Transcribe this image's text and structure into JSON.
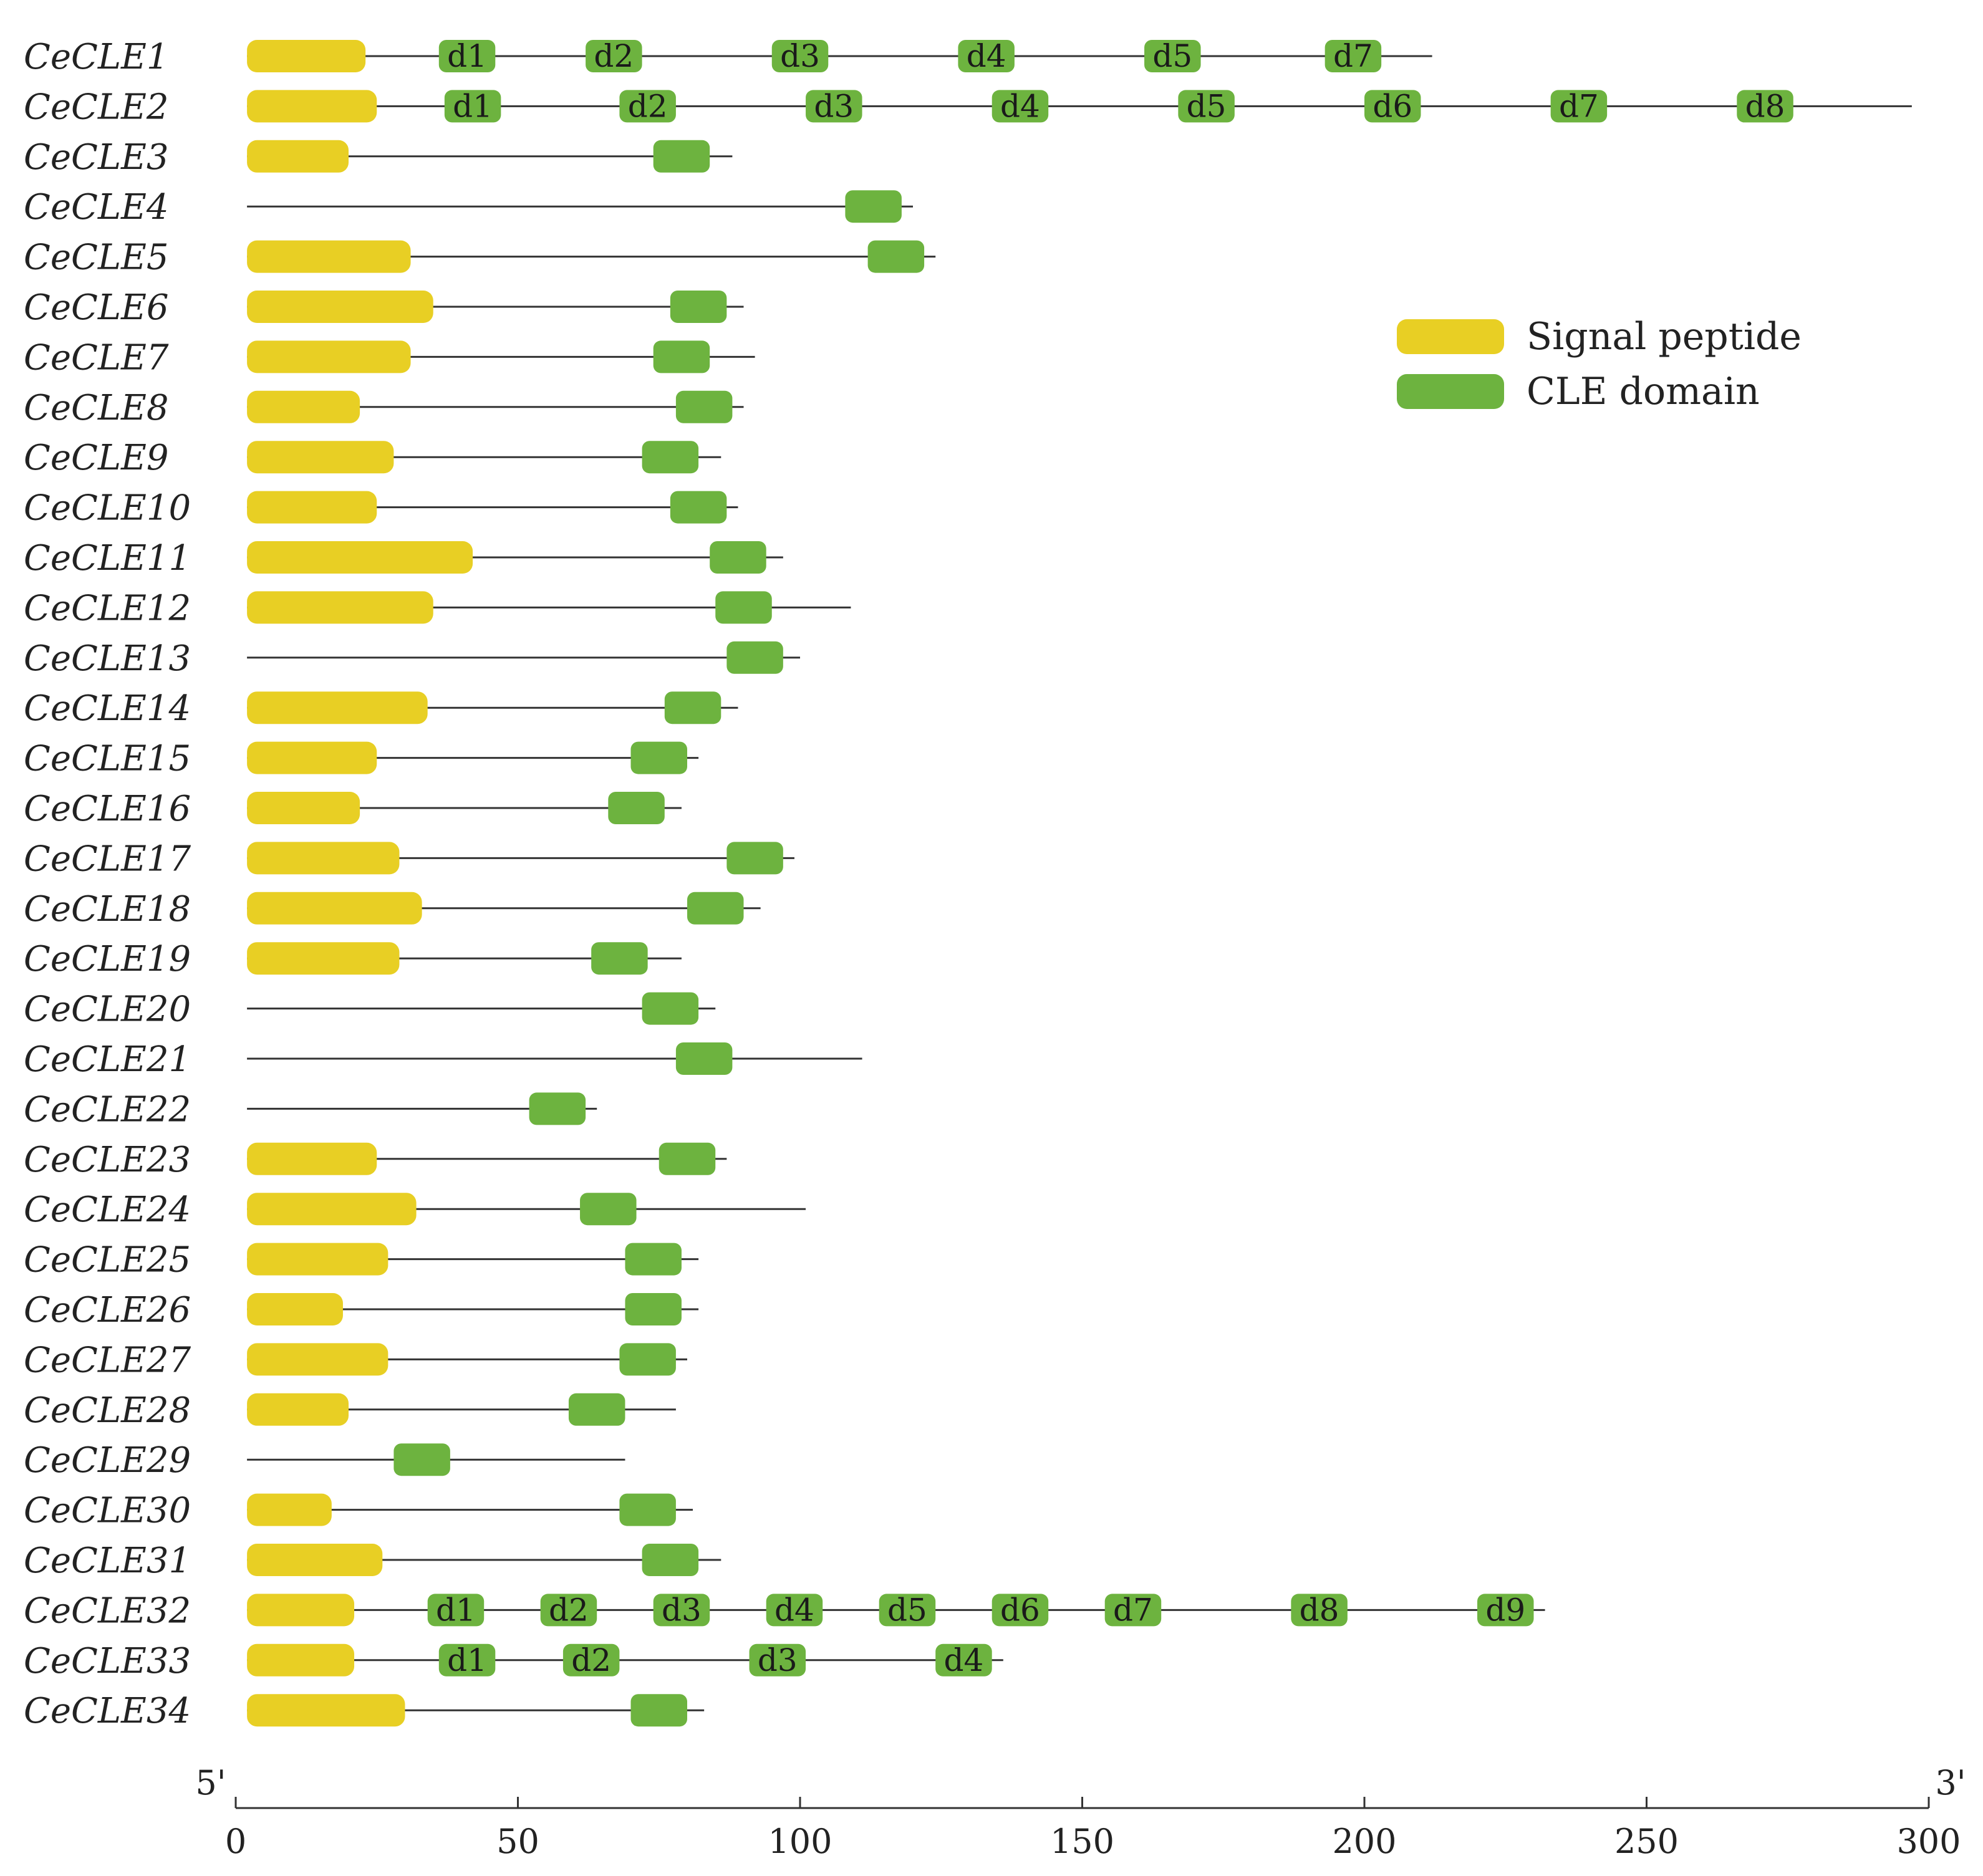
{
  "chart_data": {
    "type": "gene-structure",
    "title": "",
    "xlabel": "",
    "ylabel": "",
    "xlim": [
      0,
      300
    ],
    "xticks": [
      0,
      50,
      100,
      150,
      200,
      250,
      300
    ],
    "axis_end_labels": {
      "left": "5'",
      "right": "3'"
    },
    "colors": {
      "signal_peptide": "#E8CF24",
      "cle_domain": "#6DB33F",
      "backbone": "#333333"
    },
    "legend": {
      "position": "upper-right",
      "items": [
        {
          "key": "signal_peptide",
          "label": "Signal peptide"
        },
        {
          "key": "cle_domain",
          "label": "CLE domain"
        }
      ]
    },
    "genes": [
      {
        "name": "CeCLE1",
        "length": 212,
        "signal": [
          2,
          23
        ],
        "domains": [
          {
            "start": 36,
            "end": 46,
            "label": "d1"
          },
          {
            "start": 62,
            "end": 72,
            "label": "d2"
          },
          {
            "start": 95,
            "end": 105,
            "label": "d3"
          },
          {
            "start": 128,
            "end": 138,
            "label": "d4"
          },
          {
            "start": 161,
            "end": 171,
            "label": "d5"
          },
          {
            "start": 193,
            "end": 203,
            "label": "d7"
          }
        ]
      },
      {
        "name": "CeCLE2",
        "length": 297,
        "signal": [
          2,
          25
        ],
        "domains": [
          {
            "start": 37,
            "end": 47,
            "label": "d1"
          },
          {
            "start": 68,
            "end": 78,
            "label": "d2"
          },
          {
            "start": 101,
            "end": 111,
            "label": "d3"
          },
          {
            "start": 134,
            "end": 144,
            "label": "d4"
          },
          {
            "start": 167,
            "end": 177,
            "label": "d5"
          },
          {
            "start": 200,
            "end": 210,
            "label": "d6"
          },
          {
            "start": 233,
            "end": 243,
            "label": "d7"
          },
          {
            "start": 266,
            "end": 276,
            "label": "d8"
          }
        ]
      },
      {
        "name": "CeCLE3",
        "length": 88,
        "signal": [
          2,
          20
        ],
        "domains": [
          {
            "start": 74,
            "end": 84
          }
        ]
      },
      {
        "name": "CeCLE4",
        "length": 120,
        "signal": null,
        "domains": [
          {
            "start": 108,
            "end": 118
          }
        ]
      },
      {
        "name": "CeCLE5",
        "length": 124,
        "signal": [
          2,
          31
        ],
        "domains": [
          {
            "start": 112,
            "end": 122
          }
        ]
      },
      {
        "name": "CeCLE6",
        "length": 90,
        "signal": [
          2,
          35
        ],
        "domains": [
          {
            "start": 77,
            "end": 87
          }
        ]
      },
      {
        "name": "CeCLE7",
        "length": 92,
        "signal": [
          2,
          31
        ],
        "domains": [
          {
            "start": 74,
            "end": 84
          }
        ]
      },
      {
        "name": "CeCLE8",
        "length": 90,
        "signal": [
          2,
          22
        ],
        "domains": [
          {
            "start": 78,
            "end": 88
          }
        ]
      },
      {
        "name": "CeCLE9",
        "length": 86,
        "signal": [
          2,
          28
        ],
        "domains": [
          {
            "start": 72,
            "end": 82
          }
        ]
      },
      {
        "name": "CeCLE10",
        "length": 89,
        "signal": [
          2,
          25
        ],
        "domains": [
          {
            "start": 77,
            "end": 87
          }
        ]
      },
      {
        "name": "CeCLE11",
        "length": 97,
        "signal": [
          2,
          42
        ],
        "domains": [
          {
            "start": 84,
            "end": 94
          }
        ]
      },
      {
        "name": "CeCLE12",
        "length": 109,
        "signal": [
          2,
          35
        ],
        "domains": [
          {
            "start": 85,
            "end": 95
          }
        ]
      },
      {
        "name": "CeCLE13",
        "length": 100,
        "signal": null,
        "domains": [
          {
            "start": 87,
            "end": 97
          }
        ]
      },
      {
        "name": "CeCLE14",
        "length": 89,
        "signal": [
          2,
          34
        ],
        "domains": [
          {
            "start": 76,
            "end": 86
          }
        ]
      },
      {
        "name": "CeCLE15",
        "length": 82,
        "signal": [
          2,
          25
        ],
        "domains": [
          {
            "start": 70,
            "end": 80
          }
        ]
      },
      {
        "name": "CeCLE16",
        "length": 79,
        "signal": [
          2,
          22
        ],
        "domains": [
          {
            "start": 66,
            "end": 76
          }
        ]
      },
      {
        "name": "CeCLE17",
        "length": 99,
        "signal": [
          2,
          29
        ],
        "domains": [
          {
            "start": 87,
            "end": 97
          }
        ]
      },
      {
        "name": "CeCLE18",
        "length": 93,
        "signal": [
          2,
          33
        ],
        "domains": [
          {
            "start": 80,
            "end": 90
          }
        ]
      },
      {
        "name": "CeCLE19",
        "length": 79,
        "signal": [
          2,
          29
        ],
        "domains": [
          {
            "start": 63,
            "end": 73
          }
        ]
      },
      {
        "name": "CeCLE20",
        "length": 85,
        "signal": null,
        "domains": [
          {
            "start": 72,
            "end": 82
          }
        ]
      },
      {
        "name": "CeCLE21",
        "length": 111,
        "signal": null,
        "domains": [
          {
            "start": 78,
            "end": 88
          }
        ]
      },
      {
        "name": "CeCLE22",
        "length": 64,
        "signal": null,
        "domains": [
          {
            "start": 52,
            "end": 62
          }
        ]
      },
      {
        "name": "CeCLE23",
        "length": 87,
        "signal": [
          2,
          25
        ],
        "domains": [
          {
            "start": 75,
            "end": 85
          }
        ]
      },
      {
        "name": "CeCLE24",
        "length": 101,
        "signal": [
          2,
          32
        ],
        "domains": [
          {
            "start": 61,
            "end": 71
          }
        ]
      },
      {
        "name": "CeCLE25",
        "length": 82,
        "signal": [
          2,
          27
        ],
        "domains": [
          {
            "start": 69,
            "end": 79
          }
        ]
      },
      {
        "name": "CeCLE26",
        "length": 82,
        "signal": [
          2,
          19
        ],
        "domains": [
          {
            "start": 69,
            "end": 79
          }
        ]
      },
      {
        "name": "CeCLE27",
        "length": 80,
        "signal": [
          2,
          27
        ],
        "domains": [
          {
            "start": 68,
            "end": 78
          }
        ]
      },
      {
        "name": "CeCLE28",
        "length": 78,
        "signal": [
          2,
          20
        ],
        "domains": [
          {
            "start": 59,
            "end": 69
          }
        ]
      },
      {
        "name": "CeCLE29",
        "length": 69,
        "signal": null,
        "domains": [
          {
            "start": 28,
            "end": 38
          }
        ]
      },
      {
        "name": "CeCLE30",
        "length": 81,
        "signal": [
          2,
          17
        ],
        "domains": [
          {
            "start": 68,
            "end": 78
          }
        ]
      },
      {
        "name": "CeCLE31",
        "length": 86,
        "signal": [
          2,
          26
        ],
        "domains": [
          {
            "start": 72,
            "end": 82
          }
        ]
      },
      {
        "name": "CeCLE32",
        "length": 232,
        "signal": [
          2,
          21
        ],
        "domains": [
          {
            "start": 34,
            "end": 44,
            "label": "d1"
          },
          {
            "start": 54,
            "end": 64,
            "label": "d2"
          },
          {
            "start": 74,
            "end": 84,
            "label": "d3"
          },
          {
            "start": 94,
            "end": 104,
            "label": "d4"
          },
          {
            "start": 114,
            "end": 124,
            "label": "d5"
          },
          {
            "start": 134,
            "end": 144,
            "label": "d6"
          },
          {
            "start": 154,
            "end": 164,
            "label": "d7"
          },
          {
            "start": 187,
            "end": 197,
            "label": "d8"
          },
          {
            "start": 220,
            "end": 230,
            "label": "d9"
          }
        ]
      },
      {
        "name": "CeCLE33",
        "length": 136,
        "signal": [
          2,
          21
        ],
        "domains": [
          {
            "start": 36,
            "end": 46,
            "label": "d1"
          },
          {
            "start": 58,
            "end": 68,
            "label": "d2"
          },
          {
            "start": 91,
            "end": 101,
            "label": "d3"
          },
          {
            "start": 124,
            "end": 134,
            "label": "d4"
          }
        ]
      },
      {
        "name": "CeCLE34",
        "length": 83,
        "signal": [
          2,
          30
        ],
        "domains": [
          {
            "start": 70,
            "end": 80
          }
        ]
      }
    ]
  }
}
